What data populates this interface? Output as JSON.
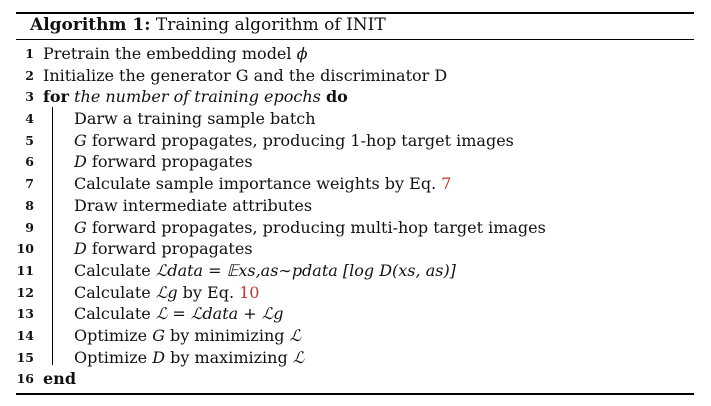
{
  "algorithm": {
    "label": "Algorithm 1:",
    "title": "Training algorithm of INIT"
  },
  "lines": [
    {
      "num": "1",
      "text": "Pretrain the embedding model ",
      "math": "ϕ"
    },
    {
      "num": "2",
      "text": "Initialize the generator G and the discriminator D"
    },
    {
      "num": "3",
      "kw_for": "for",
      "cond": "the number of training epochs",
      "kw_do": "do"
    },
    {
      "num": "4",
      "text": "Darw a training sample batch"
    },
    {
      "num": "5",
      "math": "G",
      "text": " forward propagates, producing 1-hop target images"
    },
    {
      "num": "6",
      "math": "D",
      "text": " forward propagates"
    },
    {
      "num": "7",
      "text": "Calculate sample importance weights by Eq. ",
      "ref": "7"
    },
    {
      "num": "8",
      "text": "Draw intermediate attributes"
    },
    {
      "num": "9",
      "math": "G",
      "text": " forward propagates, producing multi-hop target images"
    },
    {
      "num": "10",
      "math": "D",
      "text": " forward propagates"
    },
    {
      "num": "11",
      "text": "Calculate ",
      "math": "ℒdata = 𝔼xs,as∼pdata [log D(xs, as)]"
    },
    {
      "num": "12",
      "text": "Calculate ",
      "math": "ℒg",
      "text2": " by Eq. ",
      "ref": "10"
    },
    {
      "num": "13",
      "text": "Calculate ",
      "math": "ℒ = ℒdata + ℒg"
    },
    {
      "num": "14",
      "text": "Optimize ",
      "math": "G",
      "text2": " by minimizing ",
      "math2": "ℒ"
    },
    {
      "num": "15",
      "text": "Optimize ",
      "math": "D",
      "text2": " by maximizing ",
      "math2": "ℒ"
    },
    {
      "num": "16",
      "kw_end": "end"
    }
  ]
}
